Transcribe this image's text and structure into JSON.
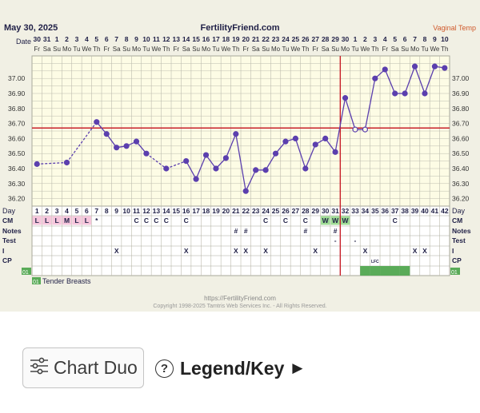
{
  "header": {
    "date": "May 30, 2025",
    "site": "FertilityFriend.com",
    "temp_method": "Vaginal Temp",
    "date_label": "Date",
    "day_label": "Day"
  },
  "colors": {
    "line": "#5b3fae",
    "coverline": "#c8202a",
    "ovulation_line": "#c8202a",
    "grid": "#bdbcae",
    "cm_l": "#f6c6dc",
    "cm_w": "#9fdc95",
    "intercourse": "#5aab58"
  },
  "dates": [
    "30",
    "31",
    "1",
    "2",
    "3",
    "4",
    "5",
    "6",
    "7",
    "8",
    "9",
    "10",
    "11",
    "12",
    "13",
    "14",
    "15",
    "16",
    "17",
    "18",
    "19",
    "20",
    "21",
    "22",
    "23",
    "24",
    "25",
    "26",
    "27",
    "28",
    "29",
    "30",
    "1",
    "2",
    "3",
    "4",
    "5",
    "6",
    "7",
    "8",
    "9",
    "10"
  ],
  "weekdays": [
    "Fr",
    "Sa",
    "Su",
    "Mo",
    "Tu",
    "We",
    "Th",
    "Fr",
    "Sa",
    "Su",
    "Mo",
    "Tu",
    "We",
    "Th",
    "Fr",
    "Sa",
    "Su",
    "Mo",
    "Tu",
    "We",
    "Th",
    "Fr",
    "Sa",
    "Su",
    "Mo",
    "Tu",
    "We",
    "Th",
    "Fr",
    "Sa",
    "Su",
    "Mo",
    "Tu",
    "We",
    "Th",
    "Fr",
    "Sa",
    "Su",
    "Mo",
    "Tu",
    "We",
    "Th"
  ],
  "row_labels": [
    "CM",
    "Notes",
    "Test",
    "I",
    "CP"
  ],
  "cm": {
    "1": "L",
    "2": "L",
    "3": "L",
    "4": "M",
    "5": "L",
    "6": "L",
    "7": "*",
    "11": "C",
    "12": "C",
    "13": "C",
    "14": "C",
    "16": "C",
    "24": "C",
    "26": "C",
    "28": "C",
    "30": "W",
    "31": "W",
    "32": "W",
    "37": "C"
  },
  "notes": {
    "21": "#",
    "22": "#",
    "28": "#",
    "31": "#"
  },
  "test": {
    "31": "-",
    "33": "-"
  },
  "intercourse": {
    "9": "X",
    "16": "X",
    "21": "X",
    "22": "X",
    "24": "X",
    "29": "X",
    "34": "X",
    "39": "X",
    "40": "X"
  },
  "cp": {
    "35": "LFC"
  },
  "cp_badge": "01",
  "cp_filled_days": [
    34,
    35,
    36,
    37,
    38
  ],
  "legend": {
    "badge": "01",
    "text": "Tender Breasts"
  },
  "footer": {
    "url": "https://FertilityFriend.com",
    "copyright": "Copyright 1998-2025 Tamtris Web Services Inc. - All Rights Reserved."
  },
  "controls": {
    "chart_duo": "Chart Duo",
    "legend_key": "Legend/Key",
    "help_glyph": "?",
    "arrow_glyph": "▶"
  },
  "chart_data": {
    "type": "line",
    "title": "FertilityFriend.com",
    "xlabel": "Day",
    "ylabel": "",
    "x": [
      1,
      2,
      3,
      4,
      5,
      6,
      7,
      8,
      9,
      10,
      11,
      12,
      13,
      14,
      15,
      16,
      17,
      18,
      19,
      20,
      21,
      22,
      23,
      24,
      25,
      26,
      27,
      28,
      29,
      30,
      31,
      32,
      33,
      34,
      35,
      36,
      37,
      38,
      39,
      40,
      41,
      42
    ],
    "ylim": [
      36.15,
      37.15
    ],
    "yticks": [
      36.2,
      36.3,
      36.4,
      36.5,
      36.6,
      36.7,
      36.8,
      36.9,
      37.0
    ],
    "series": [
      {
        "values": [
          36.43,
          null,
          null,
          36.44,
          null,
          null,
          36.71,
          36.63,
          36.54,
          36.55,
          36.58,
          36.5,
          null,
          36.4,
          null,
          36.45,
          36.33,
          36.49,
          36.4,
          36.47,
          36.63,
          36.25,
          36.39,
          36.39,
          36.5,
          36.58,
          36.6,
          36.4,
          36.56,
          36.6,
          36.51,
          36.87,
          36.66,
          36.66,
          37.0,
          37.06,
          36.9,
          36.9,
          37.08,
          36.9,
          37.08,
          37.07
        ]
      }
    ],
    "dashed_from_missing": true,
    "coverline": 36.67,
    "ovulation_day": 31,
    "hollow_points": [
      33,
      34
    ],
    "grid": true
  }
}
